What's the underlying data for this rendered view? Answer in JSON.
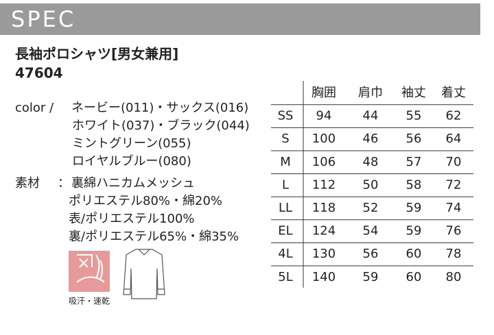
{
  "header": {
    "title": "SPEC"
  },
  "product": {
    "name": "長袖ポロシャツ[男女兼用]",
    "code": "47604"
  },
  "color": {
    "label": "color /",
    "items": [
      "ネービー(011)・サックス(016)",
      "ホワイト(037)・ブラック(044)",
      "ミントグリーン(055)",
      "ロイヤルブルー(080)"
    ]
  },
  "material": {
    "label": "素材",
    "separator": "：",
    "items": [
      "裏綿ハニカムメッシュ",
      "ポリエステル80%・綿20%",
      "表/ポリエステル100%",
      "裏/ポリエステル65%・綿35%"
    ]
  },
  "icon": {
    "label": "吸汗・速乾"
  },
  "table": {
    "columns": [
      "胸囲",
      "肩巾",
      "袖丈",
      "着丈"
    ],
    "rows": [
      {
        "size": "SS",
        "values": [
          94,
          44,
          55,
          62
        ]
      },
      {
        "size": "S",
        "values": [
          100,
          46,
          56,
          64
        ]
      },
      {
        "size": "M",
        "values": [
          106,
          48,
          57,
          70
        ]
      },
      {
        "size": "L",
        "values": [
          112,
          50,
          58,
          72
        ]
      },
      {
        "size": "LL",
        "values": [
          118,
          52,
          59,
          74
        ]
      },
      {
        "size": "EL",
        "values": [
          124,
          54,
          59,
          76
        ]
      },
      {
        "size": "4L",
        "values": [
          130,
          56,
          60,
          78
        ]
      },
      {
        "size": "5L",
        "values": [
          140,
          59,
          60,
          80
        ]
      }
    ]
  }
}
